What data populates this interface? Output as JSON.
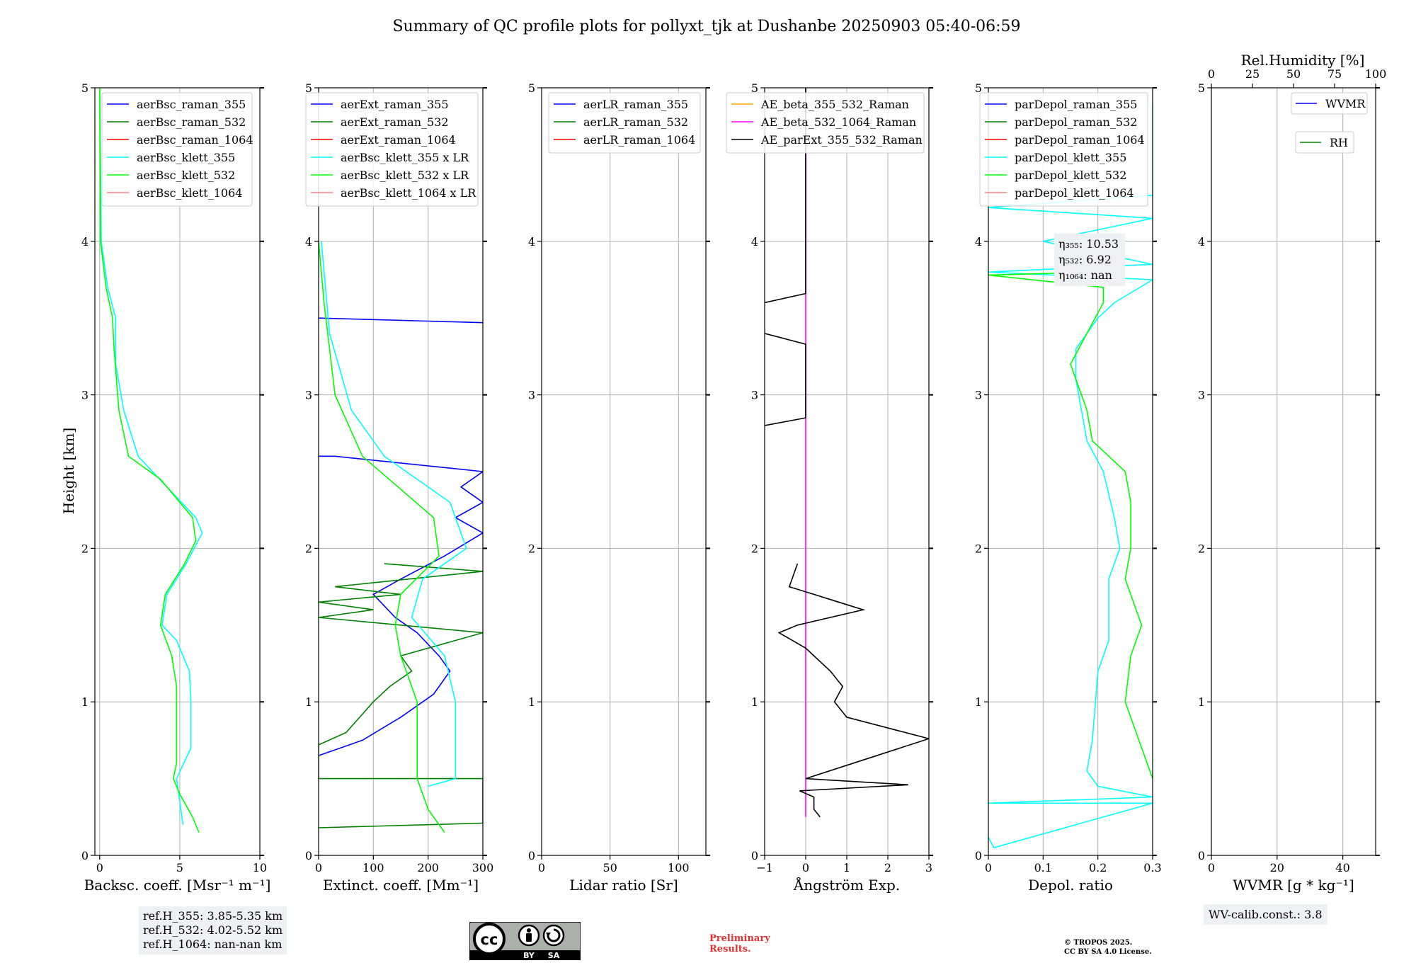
{
  "title": "Summary of QC profile plots for pollyxt_tjk at Dushanbe 20250903 05:40-06:59",
  "ylabel": "Height [km]",
  "ref_box": [
    "ref.H_355: 3.85-5.35 km",
    "ref.H_532: 4.02-5.52 km",
    "ref.H_1064: nan-nan km"
  ],
  "wv_calib": "WV-calib.const.: 3.8",
  "preliminary": [
    "Preliminary",
    "Results."
  ],
  "license": [
    "© TROPOS 2025.",
    "CC BY SA 4.0 License."
  ],
  "cc_badge": {
    "by": "BY",
    "sa": "SA"
  },
  "colors": {
    "blue": "#0000ff",
    "green": "#008000",
    "red": "#ff0000",
    "cyan": "#00ffff",
    "lime": "#00ff00",
    "pink": "#ff8080",
    "orange": "#ffa500",
    "magenta": "#ff00ff",
    "black": "#000000"
  },
  "chart_data": [
    {
      "type": "line",
      "xlabel": "Backsc. coeff. [Msr⁻¹ m⁻¹]",
      "xlim": [
        -0.3,
        10
      ],
      "ylim": [
        0,
        5
      ],
      "xticks": [
        0,
        5,
        10
      ],
      "yticks": [
        0,
        1,
        2,
        3,
        4,
        5
      ],
      "legend": [
        "aerBsc_raman_355",
        "aerBsc_raman_532",
        "aerBsc_raman_1064",
        "aerBsc_klett_355",
        "aerBsc_klett_532",
        "aerBsc_klett_1064"
      ],
      "legend_colors": [
        "#0000ff",
        "#008000",
        "#ff0000",
        "#00ffff",
        "#00ff00",
        "#ff8080"
      ],
      "series": [
        {
          "name": "aerBsc_klett_355",
          "color": "#00ffff",
          "points": [
            [
              5.2,
              0.2
            ],
            [
              4.8,
              0.5
            ],
            [
              5.7,
              0.7
            ],
            [
              5.7,
              1.0
            ],
            [
              5.6,
              1.2
            ],
            [
              4.8,
              1.4
            ],
            [
              3.9,
              1.5
            ],
            [
              4.2,
              1.7
            ],
            [
              5.4,
              1.9
            ],
            [
              6.4,
              2.1
            ],
            [
              6.0,
              2.2
            ],
            [
              4.2,
              2.4
            ],
            [
              2.4,
              2.6
            ],
            [
              1.5,
              2.9
            ],
            [
              1.0,
              3.2
            ],
            [
              1.0,
              3.5
            ],
            [
              0.5,
              3.7
            ],
            [
              0.1,
              4.0
            ],
            [
              0.05,
              4.5
            ],
            [
              0.0,
              5.0
            ]
          ]
        },
        {
          "name": "aerBsc_klett_532",
          "color": "#00ff00",
          "points": [
            [
              6.2,
              0.15
            ],
            [
              5.8,
              0.25
            ],
            [
              5.0,
              0.4
            ],
            [
              4.6,
              0.5
            ],
            [
              4.8,
              0.6
            ],
            [
              4.8,
              1.0
            ],
            [
              4.8,
              1.1
            ],
            [
              4.5,
              1.3
            ],
            [
              3.8,
              1.5
            ],
            [
              4.1,
              1.7
            ],
            [
              5.3,
              1.9
            ],
            [
              6.0,
              2.05
            ],
            [
              5.8,
              2.2
            ],
            [
              3.8,
              2.45
            ],
            [
              1.8,
              2.6
            ],
            [
              1.2,
              2.9
            ],
            [
              0.9,
              3.3
            ],
            [
              0.8,
              3.5
            ],
            [
              0.4,
              3.7
            ],
            [
              0.05,
              4.0
            ],
            [
              0.03,
              4.5
            ],
            [
              0.0,
              5.0
            ]
          ]
        }
      ]
    },
    {
      "type": "line",
      "xlabel": "Extinct. coeff. [Mm⁻¹]",
      "xlim": [
        0,
        300
      ],
      "ylim": [
        0,
        5
      ],
      "xticks": [
        0,
        100,
        200,
        300
      ],
      "yticks": [
        0,
        1,
        2,
        3,
        4,
        5
      ],
      "legend": [
        "aerExt_raman_355",
        "aerExt_raman_532",
        "aerExt_raman_1064",
        "aerBsc_klett_355 x LR",
        "aerBsc_klett_532 x LR",
        "aerBsc_klett_1064 x LR"
      ],
      "legend_colors": [
        "#0000ff",
        "#008000",
        "#ff0000",
        "#00ffff",
        "#00ff00",
        "#ff8080"
      ],
      "series": [
        {
          "name": "aerExt_raman_355",
          "color": "#0000ff",
          "points": [
            [
              0,
              0.65
            ],
            [
              80,
              0.75
            ],
            [
              150,
              0.9
            ],
            [
              210,
              1.05
            ],
            [
              240,
              1.2
            ],
            [
              220,
              1.3
            ],
            [
              180,
              1.45
            ],
            [
              140,
              1.55
            ],
            [
              100,
              1.7
            ],
            [
              150,
              1.8
            ],
            [
              230,
              1.95
            ],
            [
              300,
              2.1
            ],
            [
              250,
              2.2
            ],
            [
              300,
              2.3
            ],
            [
              260,
              2.4
            ],
            [
              300,
              2.5
            ],
            [
              30,
              2.6
            ],
            [
              0,
              2.6
            ]
          ]
        },
        {
          "name": "aerExt_raman_355_top",
          "color": "#0000ff",
          "points": [
            [
              0,
              3.5
            ],
            [
              200,
              3.48
            ],
            [
              300,
              3.47
            ]
          ]
        },
        {
          "name": "aerExt_raman_532",
          "color": "#008000",
          "points": [
            [
              0,
              0.18
            ],
            [
              300,
              0.21
            ],
            [
              300,
              0.5
            ],
            [
              0,
              0.5
            ],
            [
              0,
              0.72
            ],
            [
              50,
              0.8
            ],
            [
              100,
              1.0
            ],
            [
              130,
              1.1
            ],
            [
              170,
              1.2
            ],
            [
              150,
              1.3
            ],
            [
              300,
              1.45
            ],
            [
              0,
              1.55
            ],
            [
              100,
              1.6
            ],
            [
              0,
              1.65
            ],
            [
              150,
              1.7
            ],
            [
              30,
              1.75
            ],
            [
              300,
              1.85
            ],
            [
              120,
              1.9
            ]
          ]
        },
        {
          "name": "aerBsc_klett_355 x LR",
          "color": "#00ffff",
          "points": [
            [
              200,
              0.45
            ],
            [
              250,
              0.5
            ],
            [
              250,
              1.0
            ],
            [
              230,
              1.3
            ],
            [
              170,
              1.55
            ],
            [
              190,
              1.8
            ],
            [
              270,
              2.0
            ],
            [
              240,
              2.3
            ],
            [
              120,
              2.6
            ],
            [
              60,
              2.9
            ],
            [
              20,
              3.4
            ],
            [
              5,
              4.0
            ]
          ]
        },
        {
          "name": "aerBsc_klett_532 x LR",
          "color": "#00ff00",
          "points": [
            [
              230,
              0.15
            ],
            [
              200,
              0.3
            ],
            [
              180,
              0.5
            ],
            [
              180,
              1.0
            ],
            [
              150,
              1.3
            ],
            [
              140,
              1.5
            ],
            [
              150,
              1.7
            ],
            [
              220,
              1.95
            ],
            [
              210,
              2.2
            ],
            [
              80,
              2.6
            ],
            [
              30,
              3.0
            ],
            [
              10,
              3.6
            ],
            [
              0,
              4.0
            ]
          ]
        }
      ]
    },
    {
      "type": "line",
      "xlabel": "Lidar ratio [Sr]",
      "xlim": [
        0,
        120
      ],
      "ylim": [
        0,
        5
      ],
      "xticks": [
        0,
        50,
        100
      ],
      "yticks": [
        0,
        1,
        2,
        3,
        4,
        5
      ],
      "legend": [
        "aerLR_raman_355",
        "aerLR_raman_532",
        "aerLR_raman_1064"
      ],
      "legend_colors": [
        "#0000ff",
        "#008000",
        "#ff0000"
      ],
      "series": []
    },
    {
      "type": "line",
      "xlabel": "Ångström Exp.",
      "xlim": [
        -1,
        3
      ],
      "ylim": [
        0,
        5
      ],
      "xticks": [
        -1,
        0,
        1,
        2,
        3
      ],
      "ytick_labels_shown": [
        0,
        1,
        2,
        3,
        4,
        5
      ],
      "legend": [
        "AE_beta_355_532_Raman",
        "AE_beta_532_1064_Raman",
        "AE_parExt_355_532_Raman"
      ],
      "legend_colors": [
        "#ffa500",
        "#ff00ff",
        "#000000"
      ],
      "series": [
        {
          "name": "AE_beta_532_1064_Raman",
          "color": "#ff00ff",
          "points": [
            [
              0,
              0.25
            ],
            [
              0,
              5.0
            ]
          ]
        },
        {
          "name": "AE_parExt_355_532_Raman",
          "color": "#000000",
          "points": [
            [
              0.35,
              0.25
            ],
            [
              0.2,
              0.3
            ],
            [
              0.2,
              0.38
            ],
            [
              -0.15,
              0.42
            ],
            [
              2.5,
              0.46
            ],
            [
              0,
              0.5
            ],
            [
              3.0,
              0.76
            ],
            [
              1.0,
              0.9
            ],
            [
              0.7,
              1.0
            ],
            [
              0.9,
              1.1
            ],
            [
              0.6,
              1.2
            ],
            [
              0.0,
              1.35
            ],
            [
              -0.65,
              1.45
            ],
            [
              -0.2,
              1.5
            ],
            [
              1.4,
              1.6
            ],
            [
              0.8,
              1.65
            ],
            [
              0.2,
              1.7
            ],
            [
              -0.4,
              1.75
            ],
            [
              -0.2,
              1.9
            ]
          ]
        },
        {
          "name": "AE_parExt_355_532_Raman_upper",
          "color": "#000000",
          "points": [
            [
              -1,
              2.8
            ],
            [
              0,
              2.85
            ],
            [
              0,
              3.33
            ],
            [
              -1,
              3.4
            ]
          ]
        },
        {
          "name": "AE_parExt_355_532_Raman_upper2",
          "color": "#000000",
          "points": [
            [
              -1,
              3.6
            ],
            [
              0,
              3.66
            ],
            [
              0,
              5.0
            ]
          ]
        }
      ]
    },
    {
      "type": "line",
      "xlabel": "Depol. ratio",
      "xlim": [
        0,
        0.3
      ],
      "ylim": [
        0,
        5
      ],
      "xticks": [
        0.0,
        0.1,
        0.2,
        0.3
      ],
      "yticks": [
        0,
        1,
        2,
        3,
        4,
        5
      ],
      "legend": [
        "parDepol_raman_355",
        "parDepol_raman_532",
        "parDepol_raman_1064",
        "parDepol_klett_355",
        "parDepol_klett_532",
        "parDepol_klett_1064"
      ],
      "legend_colors": [
        "#0000ff",
        "#008000",
        "#ff0000",
        "#00ffff",
        "#00ff00",
        "#ff8080"
      ],
      "annotation": [
        "η₃₅₅: 10.53",
        "η₅₃₂: 6.92",
        "η₁₀₆₄: nan"
      ],
      "series": [
        {
          "name": "parDepol_klett_355",
          "color": "#00ffff",
          "points": [
            [
              0.0,
              0.12
            ],
            [
              0.01,
              0.05
            ],
            [
              0.3,
              0.34
            ],
            [
              0.0,
              0.34
            ],
            [
              0.3,
              0.38
            ],
            [
              0.2,
              0.45
            ],
            [
              0.18,
              0.55
            ],
            [
              0.19,
              0.75
            ],
            [
              0.2,
              1.2
            ],
            [
              0.22,
              1.4
            ],
            [
              0.22,
              1.6
            ],
            [
              0.22,
              1.8
            ],
            [
              0.24,
              2.0
            ],
            [
              0.23,
              2.2
            ],
            [
              0.21,
              2.5
            ],
            [
              0.18,
              2.7
            ],
            [
              0.17,
              2.9
            ],
            [
              0.16,
              3.1
            ],
            [
              0.16,
              3.3
            ],
            [
              0.2,
              3.5
            ],
            [
              0.23,
              3.6
            ],
            [
              0.3,
              3.75
            ],
            [
              0.0,
              3.8
            ],
            [
              0.3,
              3.85
            ],
            [
              0.1,
              4.0
            ],
            [
              0.3,
              4.15
            ],
            [
              0.0,
              4.22
            ],
            [
              0.3,
              4.3
            ],
            [
              0.3,
              4.9
            ]
          ]
        },
        {
          "name": "parDepol_klett_532",
          "color": "#00ff00",
          "points": [
            [
              0.3,
              0.5
            ],
            [
              0.27,
              0.8
            ],
            [
              0.25,
              1.0
            ],
            [
              0.26,
              1.3
            ],
            [
              0.28,
              1.5
            ],
            [
              0.25,
              1.8
            ],
            [
              0.26,
              2.0
            ],
            [
              0.26,
              2.3
            ],
            [
              0.25,
              2.5
            ],
            [
              0.22,
              2.6
            ],
            [
              0.19,
              2.7
            ],
            [
              0.18,
              2.9
            ],
            [
              0.17,
              3.0
            ],
            [
              0.15,
              3.2
            ],
            [
              0.18,
              3.4
            ],
            [
              0.21,
              3.6
            ],
            [
              0.21,
              3.7
            ],
            [
              0.0,
              3.78
            ],
            [
              0.2,
              3.8
            ]
          ]
        }
      ]
    },
    {
      "type": "line",
      "xlabel": "WVMR [g * kg⁻¹]",
      "xlim": [
        0,
        50
      ],
      "ylim": [
        0,
        5
      ],
      "xticks": [
        0,
        20,
        40
      ],
      "yticks": [
        0,
        1,
        2,
        3,
        4,
        5
      ],
      "top_axis_label": "Rel.Humidity [%]",
      "top_xticks": [
        0,
        25,
        50,
        75,
        100
      ],
      "legend": [
        "WVMR",
        "RH"
      ],
      "legend_colors": [
        "#0000ff",
        "#008000"
      ],
      "series": []
    }
  ]
}
